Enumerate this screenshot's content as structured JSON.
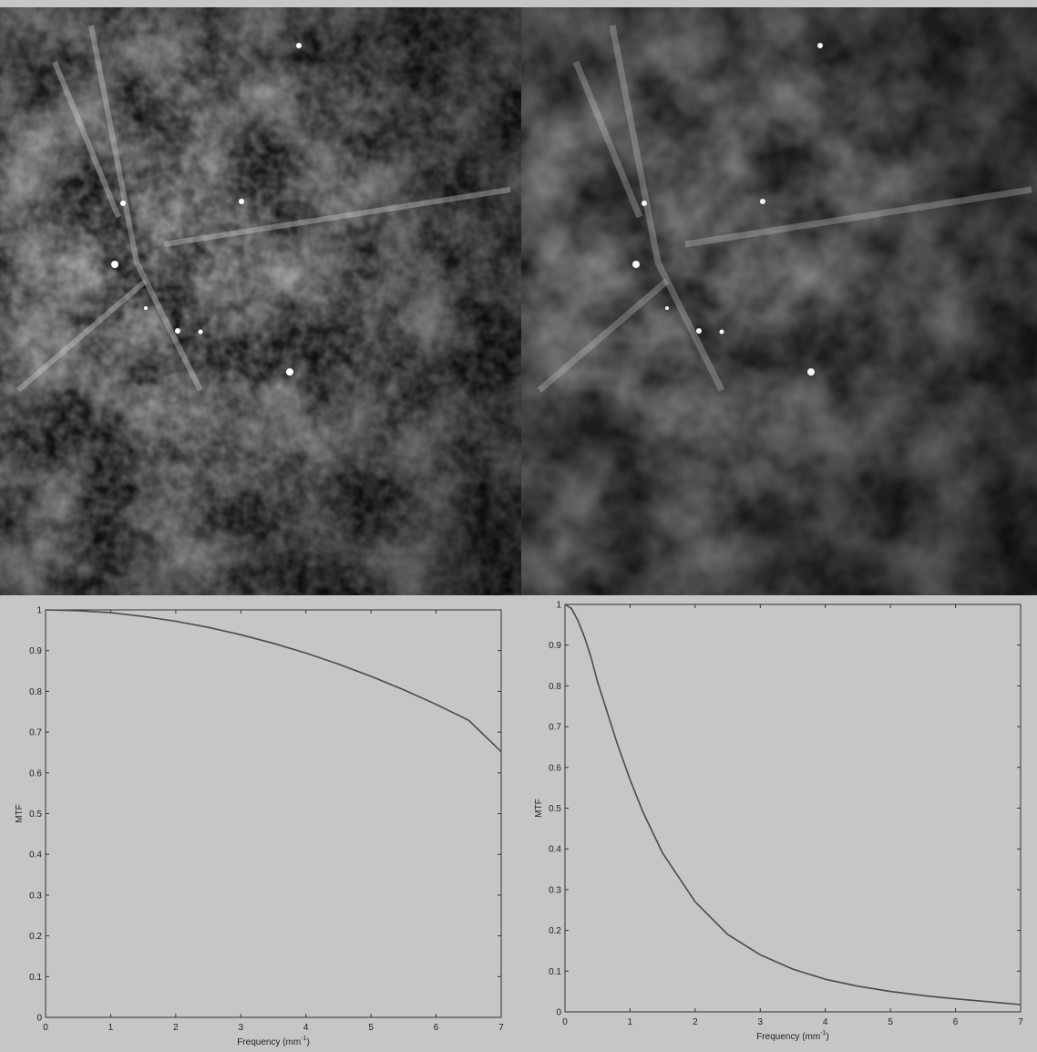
{
  "images": [
    {
      "name": "mammogram-left",
      "description_tone": "higher-detail grayscale tissue"
    },
    {
      "name": "mammogram-right",
      "description_tone": "smoothed grayscale tissue"
    }
  ],
  "colors": {
    "plot_bg": "#c6c6c6",
    "curve": "#4a4a4a",
    "axis": "#333333"
  },
  "chart_data": [
    {
      "type": "line",
      "title": "",
      "xlabel": "Frequency (mm",
      "xlabel_sup": "-1",
      "xlabel_close": ")",
      "ylabel": "MTF",
      "xlim": [
        0,
        7
      ],
      "ylim": [
        0,
        1
      ],
      "xticks": [
        "0",
        "1",
        "2",
        "3",
        "4",
        "5",
        "6",
        "7"
      ],
      "yticks": [
        "0",
        "0.1",
        "0.2",
        "0.3",
        "0.4",
        "0.5",
        "0.6",
        "0.7",
        "0.8",
        "0.9",
        "1"
      ],
      "series": [
        {
          "x": [
            0,
            0.5,
            1,
            1.5,
            2,
            2.5,
            3,
            3.5,
            4,
            4.5,
            5,
            5.5,
            6,
            6.5,
            7
          ],
          "y": [
            1.0,
            0.998,
            0.993,
            0.984,
            0.972,
            0.957,
            0.939,
            0.918,
            0.894,
            0.867,
            0.837,
            0.804,
            0.768,
            0.729,
            0.652
          ]
        }
      ]
    },
    {
      "type": "line",
      "title": "",
      "xlabel": "Frequency (mm",
      "xlabel_sup": "-1",
      "xlabel_close": ")",
      "ylabel": "MTF",
      "xlim": [
        0,
        7
      ],
      "ylim": [
        0,
        1
      ],
      "xticks": [
        "0",
        "1",
        "2",
        "3",
        "4",
        "5",
        "6",
        "7"
      ],
      "yticks": [
        "0",
        "0.1",
        "0.2",
        "0.3",
        "0.4",
        "0.5",
        "0.6",
        "0.7",
        "0.8",
        "0.9",
        "1"
      ],
      "series": [
        {
          "x": [
            0,
            0.1,
            0.2,
            0.3,
            0.4,
            0.5,
            0.6,
            0.8,
            1.0,
            1.2,
            1.5,
            2.0,
            2.5,
            3.0,
            3.5,
            4.0,
            4.5,
            5.0,
            5.5,
            6.0,
            6.5,
            7.0
          ],
          "y": [
            1.0,
            0.99,
            0.96,
            0.92,
            0.87,
            0.81,
            0.76,
            0.66,
            0.57,
            0.49,
            0.39,
            0.27,
            0.19,
            0.14,
            0.105,
            0.08,
            0.063,
            0.05,
            0.04,
            0.032,
            0.025,
            0.018
          ]
        }
      ]
    }
  ]
}
